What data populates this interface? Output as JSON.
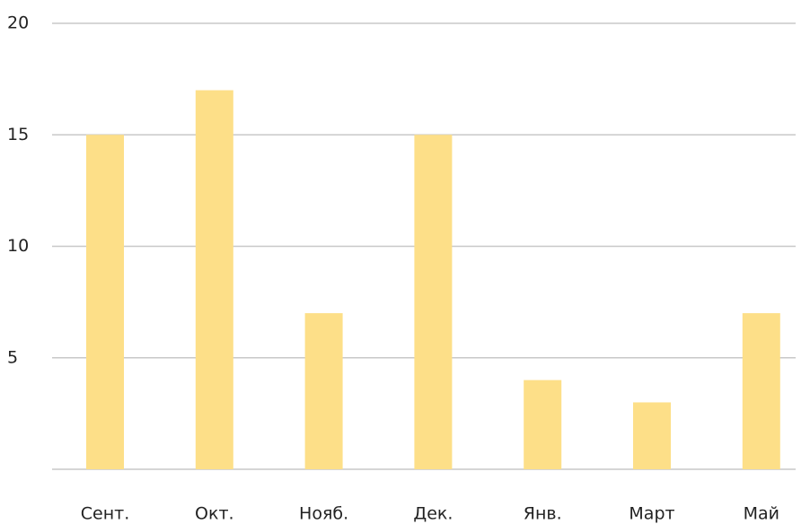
{
  "chart_data": {
    "type": "bar",
    "categories": [
      "Сент.",
      "Окт.",
      "Нояб.",
      "Дек.",
      "Янв.",
      "Март",
      "Май"
    ],
    "values": [
      15,
      17,
      7,
      15,
      4,
      3,
      7
    ],
    "color": "#fddf88",
    "ylim": [
      0,
      20
    ],
    "yticks": [
      5,
      10,
      15,
      20
    ],
    "grid": true
  }
}
